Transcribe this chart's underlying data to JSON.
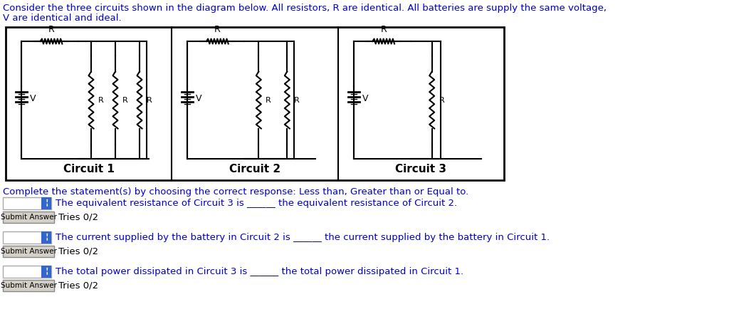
{
  "title_line1": "Consider the three circuits shown in the diagram below. All resistors, R are identical. All batteries are supply the same voltage,",
  "title_line2": "V are identical and ideal.",
  "complete_text": "Complete the statement(s) by choosing the correct response: Less than, Greater than or Equal to.",
  "q1": "The equivalent resistance of Circuit 3 is ______ the equivalent resistance of Circuit 2.",
  "q2": "The current supplied by the battery in Circuit 2 is ______ the current supplied by the battery in Circuit 1.",
  "q3": "The total power dissipated in Circuit 3 is ______ the total power dissipated in Circuit 1.",
  "tries": "Tries 0/2",
  "circuit_labels": [
    "Circuit 1",
    "Circuit 2",
    "Circuit 3"
  ],
  "text_color": "#0000CC",
  "black": "#000000",
  "bg_color": "#ffffff",
  "button_color": "#d4d0c8",
  "button_text": "Submit Answer",
  "dropdown_bg": "#ffffff",
  "dropdown_btn": "#3366cc"
}
